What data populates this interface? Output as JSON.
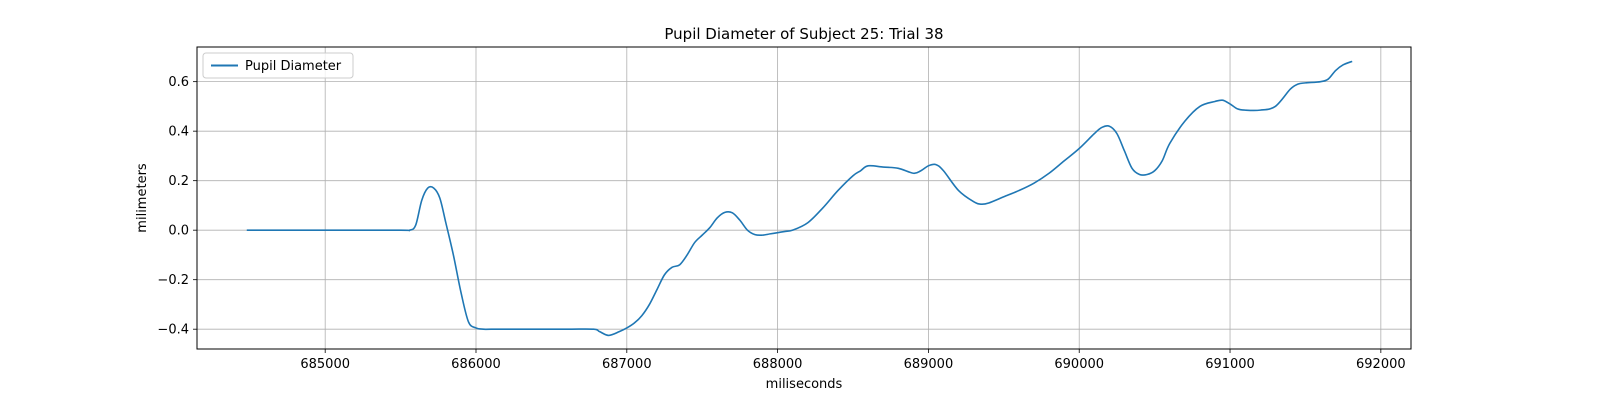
{
  "chart_data": {
    "type": "line",
    "title": "Pupil Diameter of Subject 25: Trial 38",
    "xlabel": "miliseconds",
    "ylabel": "milimeters",
    "xlim": [
      684150,
      692200
    ],
    "ylim": [
      -0.48,
      0.74
    ],
    "xticks": [
      685000,
      686000,
      687000,
      688000,
      689000,
      690000,
      691000,
      692000
    ],
    "yticks": [
      -0.4,
      -0.2,
      0.0,
      0.2,
      0.4,
      0.6
    ],
    "ytick_labels": [
      "−0.4",
      "−0.2",
      "0.0",
      "0.2",
      "0.4",
      "0.6"
    ],
    "grid": true,
    "legend_position": "top-left",
    "series": [
      {
        "name": "Pupil Diameter",
        "color": "#1f77b4",
        "x": [
          684480,
          685000,
          685500,
          685560,
          685600,
          685640,
          685680,
          685720,
          685760,
          685800,
          685850,
          685900,
          685950,
          686000,
          686050,
          686100,
          686300,
          686600,
          686780,
          686820,
          686880,
          686950,
          687000,
          687050,
          687100,
          687150,
          687200,
          687250,
          687300,
          687350,
          687400,
          687450,
          687500,
          687550,
          687600,
          687650,
          687700,
          687750,
          687800,
          687850,
          687900,
          687950,
          688000,
          688050,
          688100,
          688200,
          688300,
          688400,
          688500,
          688550,
          688600,
          688700,
          688800,
          688900,
          688950,
          689000,
          689050,
          689100,
          689200,
          689300,
          689350,
          689400,
          689500,
          689600,
          689700,
          689800,
          689900,
          690000,
          690100,
          690150,
          690200,
          690250,
          690300,
          690350,
          690400,
          690450,
          690500,
          690550,
          690600,
          690700,
          690800,
          690900,
          690950,
          691000,
          691050,
          691100,
          691200,
          691300,
          691400,
          691450,
          691500,
          691600,
          691650,
          691700,
          691750,
          691810
        ],
        "y": [
          0.0,
          0.0,
          0.0,
          0.0,
          0.02,
          0.12,
          0.17,
          0.17,
          0.13,
          0.03,
          -0.1,
          -0.25,
          -0.37,
          -0.395,
          -0.4,
          -0.4,
          -0.4,
          -0.4,
          -0.4,
          -0.41,
          -0.425,
          -0.41,
          -0.395,
          -0.375,
          -0.345,
          -0.3,
          -0.24,
          -0.18,
          -0.15,
          -0.14,
          -0.1,
          -0.05,
          -0.02,
          0.01,
          0.05,
          0.072,
          0.07,
          0.04,
          0.0,
          -0.018,
          -0.02,
          -0.015,
          -0.01,
          -0.005,
          0.0,
          0.03,
          0.09,
          0.16,
          0.22,
          0.24,
          0.26,
          0.255,
          0.25,
          0.23,
          0.24,
          0.26,
          0.265,
          0.24,
          0.16,
          0.115,
          0.105,
          0.11,
          0.135,
          0.16,
          0.19,
          0.23,
          0.28,
          0.33,
          0.39,
          0.415,
          0.42,
          0.39,
          0.32,
          0.25,
          0.225,
          0.225,
          0.24,
          0.28,
          0.35,
          0.44,
          0.5,
          0.52,
          0.525,
          0.51,
          0.49,
          0.485,
          0.485,
          0.5,
          0.57,
          0.59,
          0.595,
          0.6,
          0.61,
          0.645,
          0.668,
          0.682
        ]
      }
    ]
  }
}
